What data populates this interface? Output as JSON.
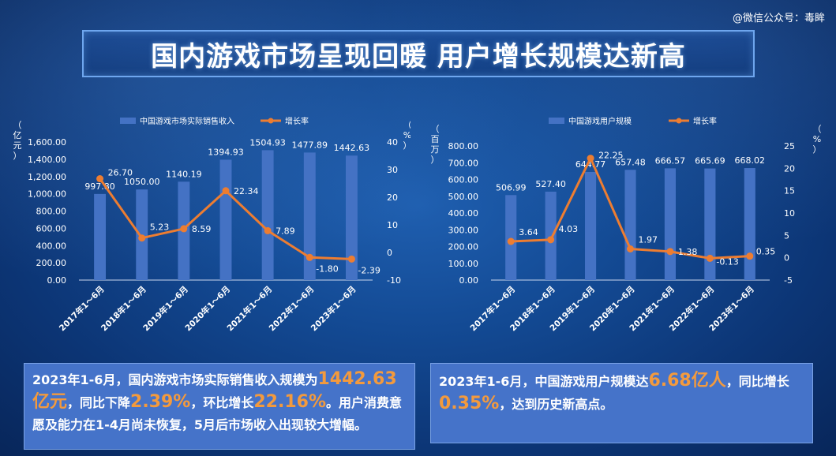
{
  "watermark": "@微信公众号：毒眸",
  "title": "国内游戏市场呈现回暖 用户增长规模达新高",
  "colors": {
    "bar": "#4472c4",
    "line": "#ed7d31",
    "highlight": "#f39a3d",
    "summary_bg": "#4573c9"
  },
  "chart_data": [
    {
      "type": "bar",
      "categories": [
        "2017年1～6月",
        "2018年1～6月",
        "2019年1～6月",
        "2020年1～6月",
        "2021年1～6月",
        "2022年1～6月",
        "2023年1～6月"
      ],
      "series": [
        {
          "name": "中国游戏市场实际销售收入",
          "type": "bar",
          "axis": "left",
          "values": [
            997.8,
            1050.0,
            1140.19,
            1394.93,
            1504.93,
            1477.89,
            1442.63
          ],
          "labels": [
            "997.80",
            "1050.00",
            "1140.19",
            "1394.93",
            "1504.93",
            "1477.89",
            "1442.63"
          ]
        },
        {
          "name": "增长率",
          "type": "line",
          "axis": "right",
          "values": [
            26.7,
            5.23,
            8.59,
            22.34,
            7.89,
            -1.8,
            -2.39
          ],
          "labels": [
            "26.70",
            "5.23",
            "8.59",
            "22.34",
            "7.89",
            "-1.80",
            "-2.39"
          ]
        }
      ],
      "ylabel": "（亿元）",
      "y2label": "（%）",
      "ylim": [
        0,
        1600
      ],
      "y2lim": [
        -10,
        40
      ],
      "yticks": [
        "0.00",
        "200.00",
        "400.00",
        "600.00",
        "800.00",
        "1,000.00",
        "1,200.00",
        "1,400.00",
        "1,600.00"
      ],
      "y2ticks": [
        "-10",
        "0",
        "10",
        "20",
        "30",
        "40"
      ],
      "legend_position": "top"
    },
    {
      "type": "bar",
      "categories": [
        "2017年1～6月",
        "2018年1～6月",
        "2019年1～6月",
        "2020年1～6月",
        "2021年1～6月",
        "2022年1～6月",
        "2023年1～6月"
      ],
      "series": [
        {
          "name": "中国游戏用户规模",
          "type": "bar",
          "axis": "left",
          "values": [
            506.99,
            527.4,
            644.77,
            657.48,
            666.57,
            665.69,
            668.02
          ],
          "labels": [
            "506.99",
            "527.40",
            "644.77",
            "657.48",
            "666.57",
            "665.69",
            "668.02"
          ]
        },
        {
          "name": "增长率",
          "type": "line",
          "axis": "right",
          "values": [
            3.64,
            4.03,
            22.25,
            1.97,
            1.38,
            -0.13,
            0.35
          ],
          "labels": [
            "3.64",
            "4.03",
            "22.25",
            "1.97",
            "1.38",
            "-0.13",
            "0.35"
          ]
        }
      ],
      "ylabel": "（百万）",
      "y2label": "（%）",
      "ylim": [
        0,
        800
      ],
      "y2lim": [
        -5,
        25
      ],
      "yticks": [
        "0.00",
        "100.00",
        "200.00",
        "300.00",
        "400.00",
        "500.00",
        "600.00",
        "700.00",
        "800.00"
      ],
      "y2ticks": [
        "-5",
        "0",
        "5",
        "10",
        "15",
        "20",
        "25"
      ],
      "legend_position": "top"
    }
  ],
  "summary_left": {
    "p1": "2023年1-6月，国内游戏市场实际销售收入规模为",
    "h1": "1442.63亿元",
    "p2": "，同比下降",
    "h2": "2.39%",
    "p3": "，环比增长",
    "h3": "22.16%",
    "p4": "。用户消费意愿及能力在1-4月尚未恢复，5月后市场收入出现较大增幅。"
  },
  "summary_right": {
    "p1": "2023年1-6月，中国游戏用户规模达",
    "h1": "6.68亿人",
    "p2": "，同比增长",
    "h2": "0.35%",
    "p3": "，达到历史新高点。"
  }
}
